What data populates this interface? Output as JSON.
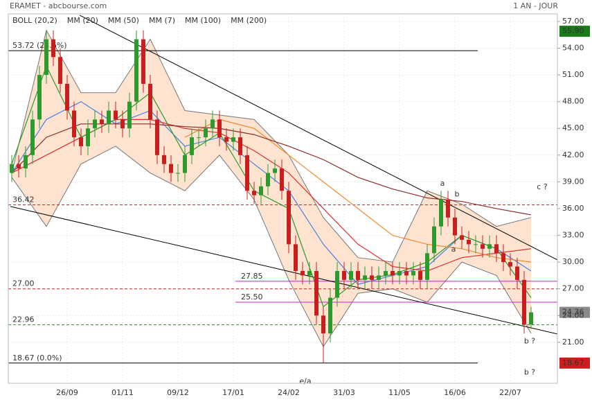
{
  "chart_data": {
    "type": "candlestick",
    "title": "ERAMET - abcbourse.com",
    "period": "1 AN - JOUR",
    "categories": [
      null,
      null,
      null,
      null,
      null,
      null,
      null,
      null,
      "26/09",
      null,
      null,
      null,
      null,
      null,
      null,
      null,
      "01/11",
      null,
      null,
      null,
      null,
      null,
      null,
      null,
      "09/12",
      null,
      null,
      null,
      null,
      null,
      null,
      null,
      "17/01",
      null,
      null,
      null,
      null,
      null,
      null,
      null,
      "24/02",
      null,
      null,
      null,
      null,
      null,
      null,
      null,
      "31/03",
      null,
      null,
      null,
      null,
      null,
      null,
      null,
      "11/05",
      null,
      null,
      null,
      null,
      null,
      null,
      null,
      "16/06",
      null,
      null,
      null,
      null,
      null,
      null,
      null,
      "22/07",
      null,
      null,
      null
    ],
    "open": [
      40,
      41,
      40.5,
      42,
      46,
      51,
      55,
      53,
      50,
      47,
      44,
      43,
      45,
      46,
      45.5,
      47,
      46,
      45,
      48,
      55,
      50,
      46,
      42,
      41,
      40,
      40,
      42,
      44,
      44,
      45,
      46,
      44,
      43.5,
      44,
      42,
      38,
      37.5,
      38.5,
      40,
      40.5,
      38,
      32,
      29,
      28.5,
      29,
      24,
      22,
      26,
      29,
      28,
      29,
      28,
      28.5,
      28,
      28.5,
      29,
      28.5,
      29,
      28.5,
      29,
      28,
      31,
      34,
      37,
      35,
      33,
      32.5,
      32,
      32,
      31.5,
      32,
      31,
      30,
      29.5,
      28,
      23
    ],
    "high": [
      42,
      42,
      43,
      47,
      52,
      56,
      56,
      54,
      51,
      48,
      45,
      46,
      47,
      47,
      48,
      48,
      47,
      49,
      56,
      56,
      51,
      47,
      43,
      42,
      41,
      43,
      45,
      45,
      46,
      47,
      47,
      45,
      45,
      45,
      43,
      39,
      39.5,
      41,
      41.5,
      41.5,
      39,
      33,
      30,
      30,
      30,
      25,
      27,
      30,
      30,
      30,
      30,
      29.5,
      29.5,
      29.5,
      30,
      30,
      30,
      30,
      30,
      30,
      32,
      35,
      38,
      38,
      36,
      34,
      33.5,
      33,
      33,
      33,
      33,
      32,
      31,
      30.5,
      29,
      25
    ],
    "low": [
      39,
      39.5,
      39.5,
      41,
      45,
      50,
      52,
      49,
      46,
      43,
      42,
      42,
      44,
      44.5,
      44.5,
      45,
      44,
      44,
      47,
      49,
      45,
      41,
      40,
      39,
      39,
      39,
      41,
      43,
      43,
      44,
      43,
      42.5,
      42.5,
      41,
      37,
      36.5,
      36.5,
      37.5,
      39,
      37,
      31,
      28,
      27.5,
      27.5,
      23,
      18.67,
      21,
      25,
      27,
      27,
      27,
      27,
      27,
      27,
      27.5,
      27.5,
      27.5,
      27.5,
      27.5,
      27,
      27,
      30,
      33,
      34,
      32,
      31.5,
      31,
      31,
      30.5,
      30.5,
      30,
      29,
      28.5,
      27,
      22,
      22.5
    ],
    "close": [
      41,
      40.5,
      42,
      46,
      51,
      55,
      53,
      50,
      47,
      44,
      43,
      45,
      46,
      45.5,
      47,
      46,
      45,
      48,
      55,
      50,
      46,
      42,
      41,
      40,
      40,
      42,
      44,
      44,
      45,
      46,
      44,
      43.5,
      44,
      42,
      38,
      37.5,
      38.5,
      40,
      40.5,
      38,
      32,
      29,
      28.5,
      29,
      24,
      22,
      26,
      29,
      28,
      29,
      28,
      28.5,
      28,
      28.5,
      29,
      28.5,
      29,
      28.5,
      29,
      28,
      31,
      34,
      37,
      35,
      33,
      32.5,
      32,
      32,
      31.5,
      32,
      31,
      30,
      29.5,
      28,
      23,
      24.36
    ],
    "up_color": "#2e9a2e",
    "down_color": "#c81e1e",
    "bands": {
      "name": "BOLL (20,2)",
      "color": "#777777",
      "fill": "#fde3d0",
      "upper": [
        40,
        56,
        49,
        49,
        55,
        47,
        46.5,
        46,
        42,
        35,
        30.5,
        30,
        38,
        36.5,
        34,
        35
      ],
      "lower": [
        39.5,
        34,
        41,
        43,
        40,
        38,
        42,
        37,
        28,
        20.5,
        26.5,
        27,
        25.5,
        30,
        28.5,
        22
      ]
    },
    "indicator_x": [
      0,
      5,
      10,
      15,
      20,
      25,
      30,
      35,
      40,
      45,
      50,
      55,
      60,
      65,
      70,
      75
    ],
    "indicators": [
      {
        "name": "MM (20)",
        "color": "#4a7fe0",
        "values": [
          40,
          46,
          48,
          45.5,
          47,
          43,
          44,
          41,
          38,
          32,
          27.5,
          28.5,
          29.5,
          33,
          31.5,
          29
        ]
      },
      {
        "name": "MM (50)",
        "color": "#e03030",
        "values": [
          40,
          42,
          44,
          46,
          46,
          45,
          44.5,
          42.5,
          40,
          36,
          32,
          29.5,
          29,
          30.5,
          31,
          31.5
        ]
      },
      {
        "name": "MM (7)",
        "color": "#2a9a2a",
        "values": [
          41,
          52,
          44,
          46,
          49,
          42,
          44.5,
          38,
          36,
          25,
          28,
          28.6,
          30,
          33,
          31.5,
          26
        ]
      },
      {
        "name": "MM (100)",
        "color": "#f08a30",
        "values": [
          null,
          null,
          null,
          null,
          null,
          44,
          46,
          45,
          42,
          39,
          36,
          33,
          32,
          31.5,
          30.5,
          30
        ]
      },
      {
        "name": "MM (200)",
        "color": "#8b2a2a",
        "values": [
          40,
          44,
          45.5,
          45.5,
          45.5,
          45.2,
          45,
          44.3,
          43,
          41.5,
          39.5,
          38.2,
          37.2,
          36.8,
          36,
          35.3
        ]
      }
    ],
    "trendlines": [
      {
        "x": [
          9.8,
          78.8
        ],
        "y": [
          57.7,
          30.25
        ],
        "color": "#000000"
      },
      {
        "x": [
          -0.2,
          78.8
        ],
        "y": [
          36.24,
          21.93
        ],
        "color": "#000000"
      }
    ],
    "levels": [
      {
        "value": 53.72,
        "label": "53.72  (23.6%)",
        "color": "#000000",
        "dashed": false,
        "span": "left"
      },
      {
        "value": 36.42,
        "label": "36.42",
        "color": "#c81e1e",
        "dashed": true,
        "span": "full"
      },
      {
        "value": 27.85,
        "label": "27.85",
        "color": "#d020c8",
        "dashed": false,
        "span": "right"
      },
      {
        "value": 27,
        "label": "27.00",
        "color": "#c81e1e",
        "dashed": true,
        "span": "full"
      },
      {
        "value": 25.5,
        "label": "25.50",
        "color": "#d020c8",
        "dashed": false,
        "span": "right"
      },
      {
        "value": 22.96,
        "label": "22.96",
        "color": "#2a8a2a",
        "dashed": true,
        "span": "full"
      },
      {
        "value": 18.67,
        "label": "18.67  (0.0%)",
        "color": "#000000",
        "dashed": false,
        "span": "left"
      }
    ],
    "price_tags": [
      {
        "value": 55.9,
        "label": "55.90",
        "color": "#1a7a1a"
      },
      {
        "value": 24.36,
        "label": "24.36",
        "color": "#8a8a8a"
      },
      {
        "value": 18.67,
        "label": "18.67",
        "color": "#c81e1e"
      }
    ],
    "annotations": [
      {
        "text": "a",
        "x": 62.2,
        "y": 38.8,
        "color": "#1a1a80"
      },
      {
        "text": "b",
        "x": 64.3,
        "y": 37.6,
        "color": "#8b2a2a"
      },
      {
        "text": "a",
        "x": 63.8,
        "y": 31.4,
        "color": "#8b2a2a"
      },
      {
        "text": "c ?",
        "x": 76.6,
        "y": 38.4,
        "color": "#1a1a80"
      },
      {
        "text": "b ?",
        "x": 74.8,
        "y": 21.1,
        "color": "#1a1a80"
      },
      {
        "text": "b ?",
        "x": 74.8,
        "y": 17.6,
        "color": "#1a1a80"
      },
      {
        "text": "e/a",
        "x": 42.4,
        "y": 16.6,
        "color": "#c81e1e"
      }
    ],
    "ylim": [
      16.4,
      57.85
    ],
    "yticks": [
      {
        "value": 21,
        "label": "21.00"
      },
      {
        "value": 24,
        "label": "24.00"
      },
      {
        "value": 27,
        "label": "27.00"
      },
      {
        "value": 30,
        "label": "30.00"
      },
      {
        "value": 33,
        "label": "33.00"
      },
      {
        "value": 36,
        "label": "36.00"
      },
      {
        "value": 39,
        "label": "39.00"
      },
      {
        "value": 42,
        "label": "42.00"
      },
      {
        "value": 45,
        "label": "45.00"
      },
      {
        "value": 48,
        "label": "48.00"
      },
      {
        "value": 51,
        "label": "51.00"
      },
      {
        "value": 54,
        "label": "54.00"
      },
      {
        "value": 57,
        "label": "57.00"
      }
    ],
    "grid": true
  }
}
